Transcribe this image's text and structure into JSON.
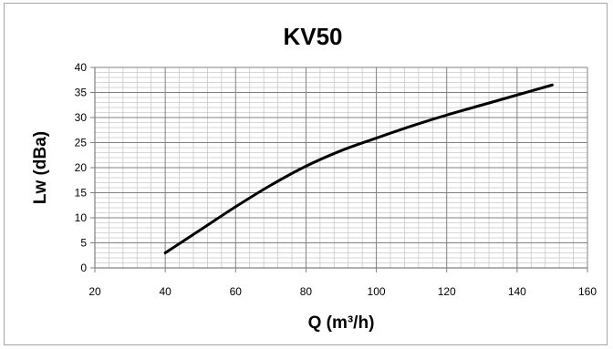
{
  "chart_data": {
    "type": "line",
    "title": "KV50",
    "xlabel": "Q (m³/h)",
    "ylabel": "Lw (dBa)",
    "xlim": [
      20,
      160
    ],
    "ylim": [
      0,
      40
    ],
    "x_ticks": [
      20,
      40,
      60,
      80,
      100,
      120,
      140,
      160
    ],
    "y_ticks": [
      0,
      5,
      10,
      15,
      20,
      25,
      30,
      35,
      40
    ],
    "grid": true,
    "legend": "none",
    "series": [
      {
        "color": "#000000",
        "x": [
          40,
          50,
          60,
          70,
          80,
          90,
          100,
          110,
          120,
          130,
          140,
          150
        ],
        "y": [
          3,
          7.6,
          12.2,
          16.5,
          20.3,
          23.4,
          25.9,
          28.3,
          30.5,
          32.5,
          34.5,
          36.5
        ]
      }
    ]
  }
}
